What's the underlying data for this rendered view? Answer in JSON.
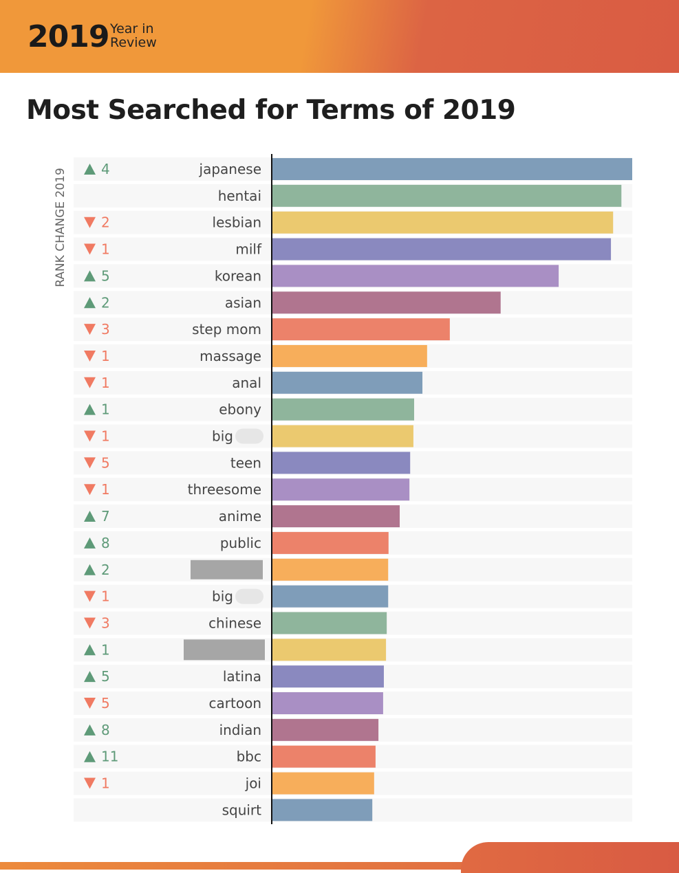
{
  "header": {
    "year": "2019",
    "subtitle": "Year in\nReview"
  },
  "colors": {
    "up": "#5e9a78",
    "down": "#f07a62",
    "header_start": "#f0983a",
    "header_end": "#d95c43",
    "palette": [
      "#7f9db9",
      "#8fb59c",
      "#ebc96f",
      "#8a89bf",
      "#a98fc4",
      "#b0758f",
      "#ec826a",
      "#f7ae5b"
    ]
  },
  "chart_data": {
    "type": "bar",
    "orientation": "horizontal",
    "title": "Most Searched for Terms of 2019",
    "rank_change_label": "RANK CHANGE 2019",
    "value_unit": "relative (top term = 100, estimated from bar lengths; no axis printed)",
    "rows": [
      {
        "term": "japanese",
        "change": 4,
        "dir": "up",
        "value": 100
      },
      {
        "term": "hentai",
        "change": null,
        "dir": "",
        "value": 97
      },
      {
        "term": "lesbian",
        "change": 2,
        "dir": "down",
        "value": 94.7
      },
      {
        "term": "milf",
        "change": 1,
        "dir": "down",
        "value": 94.1
      },
      {
        "term": "korean",
        "change": 5,
        "dir": "up",
        "value": 79.6
      },
      {
        "term": "asian",
        "change": 2,
        "dir": "up",
        "value": 63.5
      },
      {
        "term": "step mom",
        "change": 3,
        "dir": "down",
        "value": 49.4
      },
      {
        "term": "massage",
        "change": 1,
        "dir": "down",
        "value": 43.1
      },
      {
        "term": "anal",
        "change": 1,
        "dir": "down",
        "value": 41.8
      },
      {
        "term": "ebony",
        "change": 1,
        "dir": "up",
        "value": 39.5
      },
      {
        "term": "big",
        "censor": "pill",
        "change": 1,
        "dir": "down",
        "value": 39.3
      },
      {
        "term": "teen",
        "change": 5,
        "dir": "down",
        "value": 38.4
      },
      {
        "term": "threesome",
        "change": 1,
        "dir": "down",
        "value": 38.2
      },
      {
        "term": "anime",
        "change": 7,
        "dir": "up",
        "value": 35.5
      },
      {
        "term": "public",
        "change": 8,
        "dir": "up",
        "value": 32.4
      },
      {
        "term": "",
        "censor": "box",
        "change": 2,
        "dir": "up",
        "value": 32.3
      },
      {
        "term": "big",
        "censor": "pill",
        "change": 1,
        "dir": "down",
        "value": 32.3
      },
      {
        "term": "chinese",
        "change": 3,
        "dir": "down",
        "value": 31.9
      },
      {
        "term": "",
        "censor": "boxwide",
        "change": 1,
        "dir": "up",
        "value": 31.7
      },
      {
        "term": "latina",
        "change": 5,
        "dir": "up",
        "value": 31.1
      },
      {
        "term": "cartoon",
        "change": 5,
        "dir": "down",
        "value": 30.9
      },
      {
        "term": "indian",
        "change": 8,
        "dir": "up",
        "value": 29.6
      },
      {
        "term": "bbc",
        "change": 11,
        "dir": "up",
        "value": 28.8
      },
      {
        "term": "joi",
        "change": 1,
        "dir": "down",
        "value": 28.4
      },
      {
        "term": "squirt",
        "change": null,
        "dir": "",
        "value": 27.9
      }
    ]
  }
}
